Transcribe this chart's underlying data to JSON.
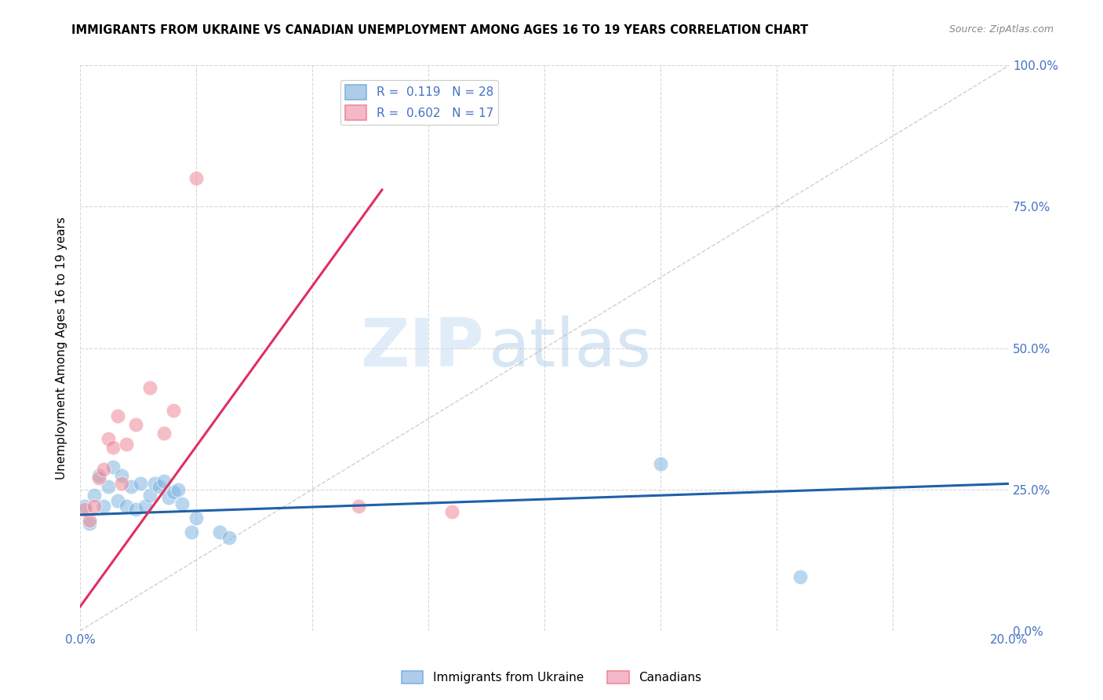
{
  "title": "IMMIGRANTS FROM UKRAINE VS CANADIAN UNEMPLOYMENT AMONG AGES 16 TO 19 YEARS CORRELATION CHART",
  "source": "Source: ZipAtlas.com",
  "ylabel": "Unemployment Among Ages 16 to 19 years",
  "right_yticks": [
    "100.0%",
    "75.0%",
    "50.0%",
    "25.0%",
    "0.0%"
  ],
  "right_ytick_vals": [
    1.0,
    0.75,
    0.5,
    0.25,
    0.0
  ],
  "legend1_label": "R =  0.119   N = 28",
  "legend2_label": "R =  0.602   N = 17",
  "legend1_color": "#aecbea",
  "legend2_color": "#f4b8c8",
  "watermark_zip": "ZIP",
  "watermark_atlas": "atlas",
  "blue_scatter_x": [
    0.001,
    0.002,
    0.003,
    0.004,
    0.005,
    0.006,
    0.007,
    0.008,
    0.009,
    0.01,
    0.011,
    0.012,
    0.013,
    0.014,
    0.015,
    0.016,
    0.017,
    0.018,
    0.019,
    0.02,
    0.021,
    0.022,
    0.024,
    0.025,
    0.03,
    0.032,
    0.125,
    0.155
  ],
  "blue_scatter_y": [
    0.22,
    0.19,
    0.24,
    0.275,
    0.22,
    0.255,
    0.29,
    0.23,
    0.275,
    0.22,
    0.255,
    0.215,
    0.26,
    0.22,
    0.24,
    0.26,
    0.255,
    0.265,
    0.235,
    0.245,
    0.25,
    0.225,
    0.175,
    0.2,
    0.175,
    0.165,
    0.295,
    0.095
  ],
  "pink_scatter_x": [
    0.001,
    0.002,
    0.003,
    0.004,
    0.005,
    0.006,
    0.007,
    0.008,
    0.009,
    0.01,
    0.012,
    0.015,
    0.018,
    0.02,
    0.025,
    0.06,
    0.08
  ],
  "pink_scatter_y": [
    0.215,
    0.195,
    0.22,
    0.27,
    0.285,
    0.34,
    0.325,
    0.38,
    0.26,
    0.33,
    0.365,
    0.43,
    0.35,
    0.39,
    0.8,
    0.22,
    0.21
  ],
  "blue_line_x": [
    0.0,
    0.2
  ],
  "blue_line_y": [
    0.205,
    0.26
  ],
  "pink_line_x": [
    -0.002,
    0.065
  ],
  "pink_line_y": [
    0.02,
    0.78
  ],
  "ref_line_x": [
    0.0,
    0.2
  ],
  "ref_line_y": [
    0.0,
    1.0
  ],
  "xlim": [
    0.0,
    0.2
  ],
  "ylim": [
    0.0,
    1.0
  ],
  "blue_color": "#7eb5e0",
  "pink_color": "#f08898",
  "blue_line_color": "#2060a8",
  "pink_line_color": "#e03060",
  "ref_line_color": "#b0b0b0",
  "grid_color": "#d8d8d8",
  "background_color": "#ffffff"
}
